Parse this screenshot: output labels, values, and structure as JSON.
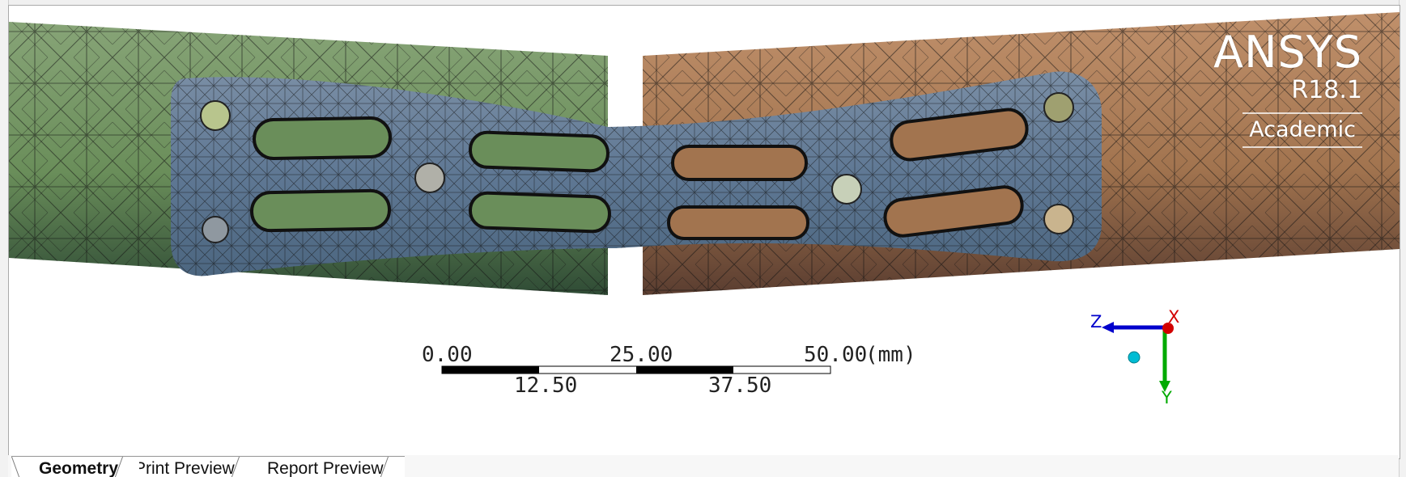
{
  "brand": {
    "name": "ANSYS",
    "version": "R18.1",
    "edition": "Academic"
  },
  "scale_bar": {
    "top_labels": [
      "0.00",
      "25.00",
      "50.00"
    ],
    "bottom_labels": [
      "12.50",
      "37.50"
    ],
    "unit": "(mm)"
  },
  "axes": {
    "x_label": "X",
    "y_label": "Y",
    "z_label": "Z",
    "x_color": "#d20000",
    "y_color": "#00aa00",
    "z_color": "#0000cc",
    "origin_color": "#00bcd4"
  },
  "colors": {
    "left_tube": "#6a8e5a",
    "right_tube": "#a2744f",
    "plate": "#5f7894",
    "mesh_line": "#111111",
    "bolt_1": "#b8c58d",
    "bolt_2": "#b0b0a8",
    "bolt_3": "#c7d0b8",
    "bolt_4": "#c9b48e",
    "bolt_5": "#8f98a0",
    "bolt_6": "#9fa070"
  },
  "tabs": [
    {
      "label": "Geometry"
    },
    {
      "label": "Print Preview"
    },
    {
      "label": "Report Preview"
    }
  ]
}
